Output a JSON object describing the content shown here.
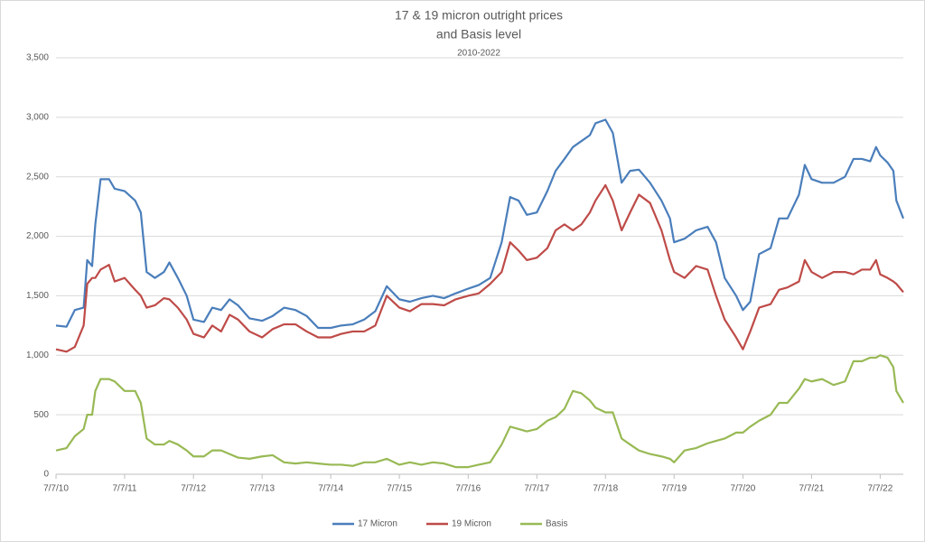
{
  "chart_data": {
    "type": "line",
    "title": "17 & 19 micron outright prices",
    "title_line2": "and Basis level",
    "subtitle": "2010-2022",
    "x": [
      "2010-07-07",
      "2010-09-01",
      "2010-10-15",
      "2010-12-01",
      "2010-12-20",
      "2011-01-15",
      "2011-02-01",
      "2011-03-01",
      "2011-04-15",
      "2011-05-15",
      "2011-07-07",
      "2011-09-01",
      "2011-10-01",
      "2011-11-01",
      "2011-12-15",
      "2012-02-01",
      "2012-03-01",
      "2012-04-15",
      "2012-06-01",
      "2012-07-07",
      "2012-09-01",
      "2012-10-15",
      "2012-12-01",
      "2013-01-15",
      "2013-03-01",
      "2013-05-01",
      "2013-07-07",
      "2013-09-01",
      "2013-11-01",
      "2014-01-01",
      "2014-03-01",
      "2014-05-01",
      "2014-07-07",
      "2014-09-01",
      "2014-11-01",
      "2015-01-01",
      "2015-03-01",
      "2015-05-01",
      "2015-07-07",
      "2015-09-01",
      "2015-11-01",
      "2016-01-01",
      "2016-03-01",
      "2016-05-01",
      "2016-07-07",
      "2016-09-01",
      "2016-11-01",
      "2017-01-01",
      "2017-02-15",
      "2017-04-01",
      "2017-05-15",
      "2017-07-07",
      "2017-09-01",
      "2017-10-15",
      "2017-12-01",
      "2018-01-15",
      "2018-03-01",
      "2018-04-15",
      "2018-05-15",
      "2018-07-07",
      "2018-08-15",
      "2018-10-01",
      "2018-11-15",
      "2019-01-01",
      "2019-03-01",
      "2019-05-01",
      "2019-06-15",
      "2019-07-07",
      "2019-09-01",
      "2019-11-01",
      "2020-01-01",
      "2020-02-15",
      "2020-04-01",
      "2020-06-01",
      "2020-07-07",
      "2020-08-15",
      "2020-10-01",
      "2020-12-01",
      "2021-01-15",
      "2021-03-01",
      "2021-05-01",
      "2021-06-01",
      "2021-07-07",
      "2021-09-01",
      "2021-11-01",
      "2022-01-01",
      "2022-02-15",
      "2022-04-01",
      "2022-05-15",
      "2022-06-15",
      "2022-07-07",
      "2022-08-15",
      "2022-09-15",
      "2022-10-01",
      "2022-11-07"
    ],
    "series": [
      {
        "name": "17 Micron",
        "color": "#4a7ebb",
        "values": [
          1250,
          1240,
          1380,
          1400,
          1800,
          1750,
          2100,
          2480,
          2480,
          2400,
          2380,
          2300,
          2200,
          1700,
          1650,
          1700,
          1780,
          1650,
          1500,
          1300,
          1280,
          1400,
          1380,
          1470,
          1420,
          1310,
          1290,
          1330,
          1400,
          1380,
          1330,
          1230,
          1230,
          1250,
          1260,
          1300,
          1370,
          1580,
          1470,
          1450,
          1480,
          1500,
          1480,
          1520,
          1560,
          1590,
          1650,
          1950,
          2330,
          2300,
          2180,
          2200,
          2380,
          2550,
          2650,
          2750,
          2800,
          2850,
          2950,
          2980,
          2870,
          2450,
          2550,
          2560,
          2450,
          2300,
          2150,
          1950,
          1980,
          2050,
          2080,
          1950,
          1650,
          1500,
          1380,
          1450,
          1850,
          1900,
          2150,
          2150,
          2350,
          2600,
          2480,
          2450,
          2450,
          2500,
          2650,
          2650,
          2630,
          2750,
          2680,
          2620,
          2550,
          2300,
          2150
        ]
      },
      {
        "name": "19 Micron",
        "color": "#be4b48",
        "values": [
          1050,
          1030,
          1070,
          1250,
          1600,
          1650,
          1650,
          1720,
          1760,
          1620,
          1650,
          1550,
          1500,
          1400,
          1420,
          1480,
          1470,
          1400,
          1300,
          1180,
          1150,
          1250,
          1200,
          1340,
          1300,
          1200,
          1150,
          1220,
          1260,
          1260,
          1200,
          1150,
          1150,
          1180,
          1200,
          1200,
          1250,
          1500,
          1400,
          1370,
          1430,
          1430,
          1420,
          1470,
          1500,
          1520,
          1600,
          1700,
          1950,
          1880,
          1800,
          1820,
          1900,
          2050,
          2100,
          2050,
          2100,
          2200,
          2300,
          2430,
          2300,
          2050,
          2200,
          2350,
          2280,
          2050,
          1800,
          1700,
          1650,
          1750,
          1720,
          1500,
          1300,
          1150,
          1050,
          1200,
          1400,
          1430,
          1550,
          1570,
          1620,
          1800,
          1700,
          1650,
          1700,
          1700,
          1680,
          1720,
          1720,
          1800,
          1680,
          1650,
          1620,
          1600,
          1530
        ]
      },
      {
        "name": "Basis",
        "color": "#98b954",
        "values": [
          200,
          220,
          320,
          380,
          500,
          500,
          700,
          800,
          800,
          780,
          700,
          700,
          600,
          300,
          250,
          250,
          280,
          250,
          200,
          150,
          150,
          200,
          200,
          170,
          140,
          130,
          150,
          160,
          100,
          90,
          100,
          90,
          80,
          80,
          70,
          100,
          100,
          130,
          80,
          100,
          80,
          100,
          90,
          60,
          60,
          80,
          100,
          250,
          400,
          380,
          360,
          380,
          450,
          480,
          550,
          700,
          680,
          620,
          560,
          520,
          520,
          300,
          250,
          200,
          170,
          150,
          130,
          100,
          200,
          220,
          260,
          280,
          300,
          350,
          350,
          400,
          450,
          500,
          600,
          600,
          720,
          800,
          780,
          800,
          750,
          780,
          950,
          950,
          980,
          980,
          1000,
          980,
          900,
          700,
          600
        ]
      }
    ],
    "xlim": [
      "2010-07-07",
      "2022-11-07"
    ],
    "xticks": [
      {
        "value": "2010-07-07",
        "label": "7/7/10"
      },
      {
        "value": "2011-07-07",
        "label": "7/7/11"
      },
      {
        "value": "2012-07-07",
        "label": "7/7/12"
      },
      {
        "value": "2013-07-07",
        "label": "7/7/13"
      },
      {
        "value": "2014-07-07",
        "label": "7/7/14"
      },
      {
        "value": "2015-07-07",
        "label": "7/7/15"
      },
      {
        "value": "2016-07-07",
        "label": "7/7/16"
      },
      {
        "value": "2017-07-07",
        "label": "7/7/17"
      },
      {
        "value": "2018-07-07",
        "label": "7/7/18"
      },
      {
        "value": "2019-07-07",
        "label": "7/7/19"
      },
      {
        "value": "2020-07-07",
        "label": "7/7/20"
      },
      {
        "value": "2021-07-07",
        "label": "7/7/21"
      },
      {
        "value": "2022-07-07",
        "label": "7/7/22"
      }
    ],
    "ylim": [
      0,
      3500
    ],
    "yticks": [
      0,
      500,
      {
        "value": 1000,
        "label": "1,000"
      },
      {
        "value": 1500,
        "label": "1,500"
      },
      {
        "value": 2000,
        "label": "2,000"
      },
      {
        "value": 2500,
        "label": "2,500"
      },
      {
        "value": 3000,
        "label": "3,000"
      },
      {
        "value": 3500,
        "label": "3,500"
      }
    ],
    "grid": true,
    "legend": "bottom"
  }
}
